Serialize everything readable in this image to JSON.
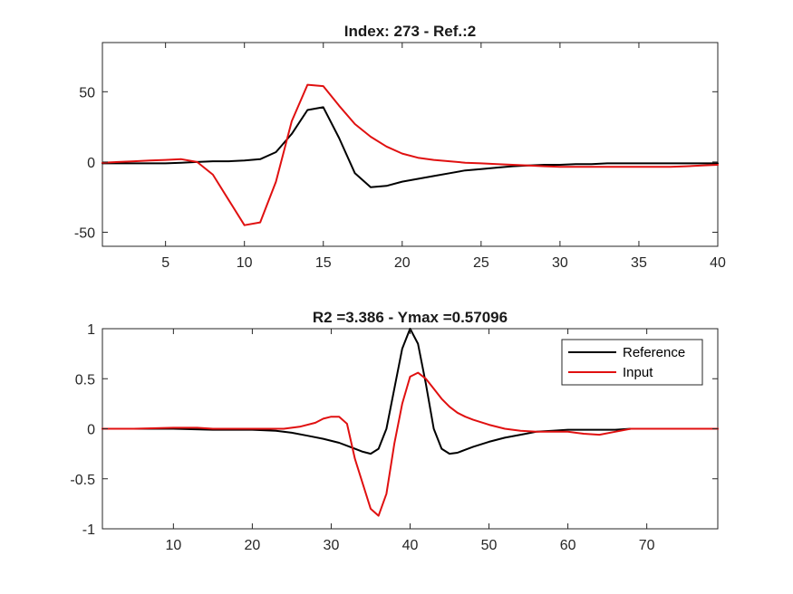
{
  "chart_data": [
    {
      "type": "line",
      "title": "Index: 273 - Ref.:2",
      "xlim": [
        1,
        40
      ],
      "ylim": [
        -60,
        85
      ],
      "xticks": [
        5,
        10,
        15,
        20,
        25,
        30,
        35,
        40
      ],
      "xtick_labels": [
        "5",
        "10",
        "15",
        "20",
        "25",
        "30",
        "35",
        "40"
      ],
      "yticks": [
        -50,
        0,
        50
      ],
      "ytick_labels": [
        "-50",
        "0",
        "50"
      ],
      "grid": true,
      "legend": false,
      "series": [
        {
          "color": "#000000",
          "x": [
            1,
            2,
            3,
            4,
            5,
            6,
            7,
            8,
            9,
            10,
            11,
            12,
            13,
            14,
            15,
            16,
            17,
            18,
            19,
            20,
            21,
            22,
            23,
            24,
            25,
            26,
            27,
            28,
            29,
            30,
            31,
            32,
            33,
            34,
            35,
            36,
            37,
            38,
            39,
            40
          ],
          "y": [
            -1,
            -1,
            -1,
            -1,
            -1,
            -0.5,
            0,
            0.5,
            0.5,
            1,
            2,
            7,
            20,
            37,
            39,
            17,
            -8,
            -18,
            -17,
            -14,
            -12,
            -10,
            -8,
            -6,
            -5,
            -4,
            -3,
            -2.5,
            -2,
            -2,
            -1.5,
            -1.5,
            -1,
            -1,
            -1,
            -1,
            -1,
            -1,
            -1,
            -1
          ]
        },
        {
          "color": "#e01010",
          "x": [
            1,
            2,
            3,
            4,
            5,
            6,
            7,
            8,
            9,
            10,
            11,
            12,
            13,
            14,
            15,
            16,
            17,
            18,
            19,
            20,
            21,
            22,
            23,
            24,
            25,
            26,
            27,
            28,
            29,
            30,
            31,
            32,
            33,
            34,
            35,
            36,
            37,
            38,
            39,
            40
          ],
          "y": [
            -0.5,
            0,
            0.5,
            1,
            1.5,
            2,
            0,
            -9,
            -27,
            -45,
            -43,
            -14,
            29,
            55,
            54,
            40,
            27,
            18,
            11,
            6,
            3,
            1.5,
            0.5,
            -0.5,
            -1,
            -1.5,
            -2,
            -2.5,
            -3,
            -3.5,
            -3.5,
            -3.5,
            -3.5,
            -3.5,
            -3.5,
            -3.5,
            -3.5,
            -3,
            -2.5,
            -2
          ]
        }
      ]
    },
    {
      "type": "line",
      "title": "R2 =3.386 - Ymax =0.57096",
      "xlim": [
        1,
        79
      ],
      "ylim": [
        -1,
        1
      ],
      "xticks": [
        10,
        20,
        30,
        40,
        50,
        60,
        70
      ],
      "xtick_labels": [
        "10",
        "20",
        "30",
        "40",
        "50",
        "60",
        "70"
      ],
      "yticks": [
        -1,
        -0.5,
        0,
        0.5,
        1
      ],
      "ytick_labels": [
        "-1",
        "-0.5",
        "0",
        "0.5",
        "1"
      ],
      "grid": true,
      "legend": "top-right",
      "series": [
        {
          "name": "Reference",
          "color": "#000000",
          "x": [
            1,
            5,
            10,
            15,
            20,
            23,
            25,
            27,
            29,
            31,
            33,
            34,
            35,
            36,
            37,
            38,
            39,
            40,
            41,
            42,
            43,
            44,
            45,
            46,
            47,
            48,
            50,
            52,
            54,
            56,
            58,
            60,
            62,
            64,
            66,
            68,
            70,
            75,
            79
          ],
          "y": [
            0,
            0,
            0,
            -0.01,
            -0.01,
            -0.02,
            -0.04,
            -0.07,
            -0.1,
            -0.14,
            -0.2,
            -0.23,
            -0.25,
            -0.2,
            0,
            0.4,
            0.8,
            1,
            0.85,
            0.45,
            0,
            -0.2,
            -0.25,
            -0.24,
            -0.21,
            -0.18,
            -0.13,
            -0.09,
            -0.06,
            -0.03,
            -0.02,
            -0.01,
            -0.01,
            -0.01,
            -0.01,
            0,
            0,
            0,
            0
          ]
        },
        {
          "name": "Input",
          "color": "#e01010",
          "x": [
            1,
            5,
            10,
            13,
            15,
            20,
            24,
            26,
            28,
            29,
            30,
            31,
            32,
            33,
            34,
            35,
            36,
            37,
            38,
            39,
            40,
            41,
            42,
            43,
            44,
            45,
            46,
            47,
            48,
            50,
            52,
            54,
            56,
            58,
            60,
            62,
            64,
            66,
            68,
            70,
            75,
            79
          ],
          "y": [
            0,
            0,
            0.01,
            0.01,
            0,
            0,
            0,
            0.02,
            0.06,
            0.1,
            0.12,
            0.12,
            0.05,
            -0.3,
            -0.55,
            -0.8,
            -0.87,
            -0.65,
            -0.15,
            0.25,
            0.52,
            0.56,
            0.5,
            0.4,
            0.3,
            0.22,
            0.16,
            0.12,
            0.09,
            0.04,
            0,
            -0.02,
            -0.03,
            -0.03,
            -0.03,
            -0.05,
            -0.06,
            -0.03,
            0,
            0,
            0,
            0
          ]
        }
      ]
    }
  ]
}
